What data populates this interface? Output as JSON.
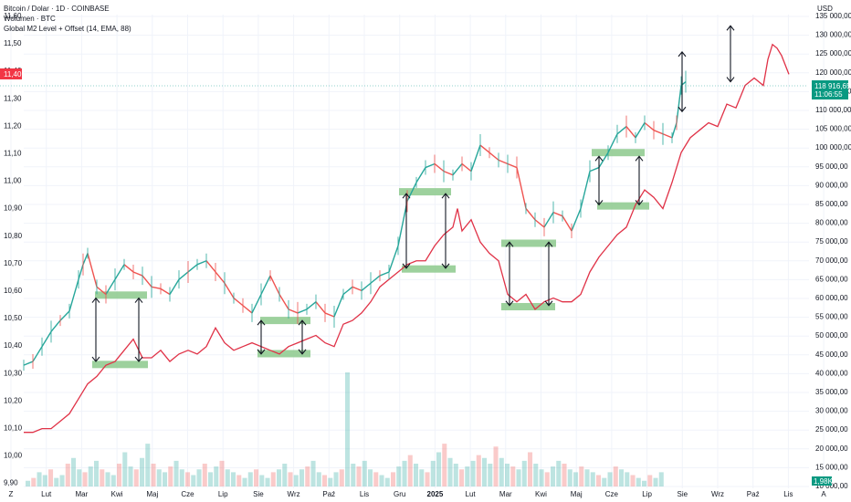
{
  "chart_data": {
    "type": "line",
    "legend_lines": [
      "Bitcoin / Dolar · 1D · COINBASE",
      "Wolumen · BTC",
      "Global M2 Level + Offset (14, EMA, 88)"
    ],
    "currency": "USD",
    "left_axis": {
      "ticks": [
        "11,60",
        "11,50",
        "11,40",
        "11,30",
        "11,20",
        "11,10",
        "11,00",
        "10,90",
        "10,80",
        "10,70",
        "10,60",
        "10,50",
        "10,40",
        "10,30",
        "10,20",
        "10,10",
        "10,00",
        "9,90"
      ],
      "current_label": "11,40",
      "range": [
        9.9,
        11.6
      ]
    },
    "right_axis": {
      "ticks": [
        "135 000,00",
        "130 000,00",
        "125 000,00",
        "120 000,00",
        "115 000,00",
        "110 000,00",
        "105 000,00",
        "100 000,00",
        "95 000,00",
        "90 000,00",
        "85 000,00",
        "80 000,00",
        "75 000,00",
        "70 000,00",
        "65 000,00",
        "60 000,00",
        "55 000,00",
        "50 000,00",
        "45 000,00",
        "40 000,00",
        "35 000,00",
        "30 000,00",
        "25 000,00",
        "20 000,00",
        "15 000,00",
        "10 000,00"
      ],
      "range": [
        10000,
        137000
      ],
      "price_label": "118 916,65",
      "countdown_label": "11:06:55",
      "volume_label": "1,98K"
    },
    "x_ticks": [
      "Z",
      "Lut",
      "Mar",
      "Kwi",
      "Maj",
      "Cze",
      "Lip",
      "Sie",
      "Wrz",
      "Paź",
      "Lis",
      "Gru",
      "2025",
      "Lut",
      "Mar",
      "Kwi",
      "Maj",
      "Cze",
      "Lip",
      "Sie",
      "Wrz",
      "Paź",
      "Lis",
      "A"
    ],
    "last_price": 118916.65,
    "series": [
      {
        "indicator": "btc",
        "color": "#26a69a",
        "down_color": "#ef5350",
        "points": [
          [
            0,
            43000
          ],
          [
            10,
            44000
          ],
          [
            20,
            48000
          ],
          [
            30,
            52000
          ],
          [
            40,
            55000
          ],
          [
            50,
            57500
          ],
          [
            60,
            66000
          ],
          [
            65,
            70000
          ],
          [
            70,
            73000
          ],
          [
            80,
            64000
          ],
          [
            90,
            62000
          ],
          [
            100,
            66000
          ],
          [
            110,
            70000
          ],
          [
            120,
            68000
          ],
          [
            130,
            67000
          ],
          [
            140,
            64000
          ],
          [
            150,
            63500
          ],
          [
            160,
            62000
          ],
          [
            170,
            66000
          ],
          [
            180,
            68000
          ],
          [
            190,
            70000
          ],
          [
            200,
            71000
          ],
          [
            210,
            68000
          ],
          [
            220,
            65000
          ],
          [
            230,
            61000
          ],
          [
            240,
            59000
          ],
          [
            250,
            57000
          ],
          [
            260,
            62000
          ],
          [
            270,
            67000
          ],
          [
            280,
            62000
          ],
          [
            290,
            58000
          ],
          [
            300,
            57000
          ],
          [
            310,
            58000
          ],
          [
            320,
            60000
          ],
          [
            330,
            57000
          ],
          [
            340,
            56000
          ],
          [
            350,
            62000
          ],
          [
            360,
            64000
          ],
          [
            370,
            63000
          ],
          [
            380,
            65000
          ],
          [
            390,
            67000
          ],
          [
            400,
            68000
          ],
          [
            410,
            75000
          ],
          [
            420,
            87000
          ],
          [
            430,
            92000
          ],
          [
            440,
            96000
          ],
          [
            450,
            97000
          ],
          [
            460,
            95000
          ],
          [
            470,
            94000
          ],
          [
            480,
            97000
          ],
          [
            490,
            95000
          ],
          [
            500,
            102000
          ],
          [
            510,
            100000
          ],
          [
            520,
            98000
          ],
          [
            530,
            97000
          ],
          [
            540,
            96000
          ],
          [
            550,
            85000
          ],
          [
            560,
            82000
          ],
          [
            570,
            80000
          ],
          [
            580,
            84000
          ],
          [
            590,
            83000
          ],
          [
            600,
            79000
          ],
          [
            610,
            85000
          ],
          [
            620,
            95000
          ],
          [
            630,
            96000
          ],
          [
            640,
            100000
          ],
          [
            650,
            105000
          ],
          [
            660,
            107000
          ],
          [
            670,
            104000
          ],
          [
            680,
            108000
          ],
          [
            690,
            106000
          ],
          [
            700,
            105000
          ],
          [
            710,
            104000
          ],
          [
            715,
            108000
          ],
          [
            720,
            118000
          ],
          [
            725,
            119000
          ]
        ]
      },
      {
        "indicator": "Global M2 Level + Offset (14, EMA, 88)",
        "color": "#e03247",
        "points": [
          [
            0,
            25000
          ],
          [
            10,
            25000
          ],
          [
            20,
            26000
          ],
          [
            30,
            26000
          ],
          [
            40,
            28000
          ],
          [
            50,
            30000
          ],
          [
            60,
            34000
          ],
          [
            70,
            38000
          ],
          [
            80,
            40000
          ],
          [
            90,
            43000
          ],
          [
            100,
            44000
          ],
          [
            110,
            47000
          ],
          [
            120,
            50000
          ],
          [
            130,
            45000
          ],
          [
            140,
            45000
          ],
          [
            150,
            47000
          ],
          [
            160,
            44000
          ],
          [
            170,
            46000
          ],
          [
            180,
            47000
          ],
          [
            190,
            46000
          ],
          [
            200,
            48000
          ],
          [
            210,
            53000
          ],
          [
            220,
            49000
          ],
          [
            230,
            47000
          ],
          [
            240,
            48000
          ],
          [
            250,
            49000
          ],
          [
            260,
            48000
          ],
          [
            270,
            47000
          ],
          [
            280,
            46000
          ],
          [
            290,
            48000
          ],
          [
            300,
            49000
          ],
          [
            310,
            50000
          ],
          [
            320,
            51000
          ],
          [
            330,
            49000
          ],
          [
            340,
            48000
          ],
          [
            350,
            54000
          ],
          [
            360,
            55000
          ],
          [
            370,
            57000
          ],
          [
            380,
            60000
          ],
          [
            390,
            64000
          ],
          [
            400,
            66000
          ],
          [
            410,
            68000
          ],
          [
            420,
            70000
          ],
          [
            430,
            71000
          ],
          [
            440,
            71000
          ],
          [
            450,
            75000
          ],
          [
            460,
            78000
          ],
          [
            470,
            80000
          ],
          [
            475,
            85000
          ],
          [
            480,
            79000
          ],
          [
            490,
            82000
          ],
          [
            500,
            76000
          ],
          [
            510,
            73000
          ],
          [
            520,
            71000
          ],
          [
            530,
            62000
          ],
          [
            540,
            60000
          ],
          [
            550,
            62000
          ],
          [
            560,
            58000
          ],
          [
            570,
            60000
          ],
          [
            580,
            61000
          ],
          [
            590,
            60000
          ],
          [
            600,
            60000
          ],
          [
            610,
            62000
          ],
          [
            620,
            68000
          ],
          [
            630,
            72000
          ],
          [
            640,
            75000
          ],
          [
            650,
            78000
          ],
          [
            660,
            80000
          ],
          [
            670,
            86000
          ],
          [
            680,
            90000
          ],
          [
            690,
            88000
          ],
          [
            700,
            85000
          ],
          [
            710,
            92000
          ],
          [
            720,
            100000
          ],
          [
            730,
            104000
          ],
          [
            740,
            106000
          ],
          [
            750,
            108000
          ],
          [
            760,
            107000
          ],
          [
            770,
            113000
          ],
          [
            780,
            112000
          ],
          [
            790,
            118000
          ],
          [
            800,
            120000
          ],
          [
            810,
            118000
          ],
          [
            815,
            125000
          ],
          [
            820,
            129000
          ],
          [
            825,
            128000
          ],
          [
            830,
            126000
          ],
          [
            838,
            121000
          ]
        ]
      }
    ],
    "annotations": {
      "green_zones": [
        {
          "x1": 104,
          "x2": 161,
          "price": 61800
        },
        {
          "x1": 101,
          "x2": 162,
          "price": 43200
        },
        {
          "x1": 285,
          "x2": 340,
          "price": 55000
        },
        {
          "x1": 282,
          "x2": 340,
          "price": 46100
        },
        {
          "x1": 437,
          "x2": 494,
          "price": 89500
        },
        {
          "x1": 440,
          "x2": 499,
          "price": 68800
        },
        {
          "x1": 549,
          "x2": 609,
          "price": 75700
        },
        {
          "x1": 549,
          "x2": 608,
          "price": 58700
        },
        {
          "x1": 648,
          "x2": 706,
          "price": 100000
        },
        {
          "x1": 654,
          "x2": 711,
          "price": 85700
        }
      ],
      "arrows": [
        {
          "x": 105,
          "from": 61000,
          "to": 44000
        },
        {
          "x": 152,
          "from": 61000,
          "to": 44000
        },
        {
          "x": 286,
          "from": 55000,
          "to": 46000
        },
        {
          "x": 331,
          "from": 55000,
          "to": 46000
        },
        {
          "x": 445,
          "from": 89000,
          "to": 69000
        },
        {
          "x": 488,
          "from": 89000,
          "to": 69000
        },
        {
          "x": 558,
          "from": 76000,
          "to": 59000
        },
        {
          "x": 601,
          "from": 76000,
          "to": 59000
        },
        {
          "x": 656,
          "from": 99000,
          "to": 86000
        },
        {
          "x": 700,
          "from": 99000,
          "to": 86000
        },
        {
          "x": 747,
          "from": 127000,
          "to": 111000
        },
        {
          "x": 800,
          "from": 134000,
          "to": 119000
        }
      ]
    },
    "volume": {
      "max_volume": 40,
      "bars": [
        2,
        3,
        5,
        4,
        6,
        3,
        4,
        8,
        10,
        6,
        5,
        7,
        9,
        6,
        5,
        4,
        8,
        12,
        7,
        6,
        10,
        15,
        8,
        6,
        5,
        7,
        9,
        6,
        5,
        4,
        6,
        8,
        5,
        7,
        9,
        6,
        5,
        4,
        3,
        5,
        6,
        4,
        3,
        5,
        6,
        8,
        5,
        4,
        6,
        7,
        9,
        5,
        4,
        3,
        5,
        6,
        40,
        8,
        7,
        9,
        6,
        5,
        4,
        3,
        5,
        7,
        9,
        11,
        8,
        6,
        5,
        9,
        12,
        15,
        10,
        8,
        6,
        7,
        9,
        11,
        10,
        8,
        14,
        10,
        8,
        7,
        6,
        9,
        12,
        8,
        6,
        5,
        7,
        9,
        8,
        6,
        5,
        7,
        6,
        5,
        4,
        3,
        5,
        7,
        6,
        5,
        4,
        3,
        2,
        4,
        3,
        5
      ]
    }
  }
}
